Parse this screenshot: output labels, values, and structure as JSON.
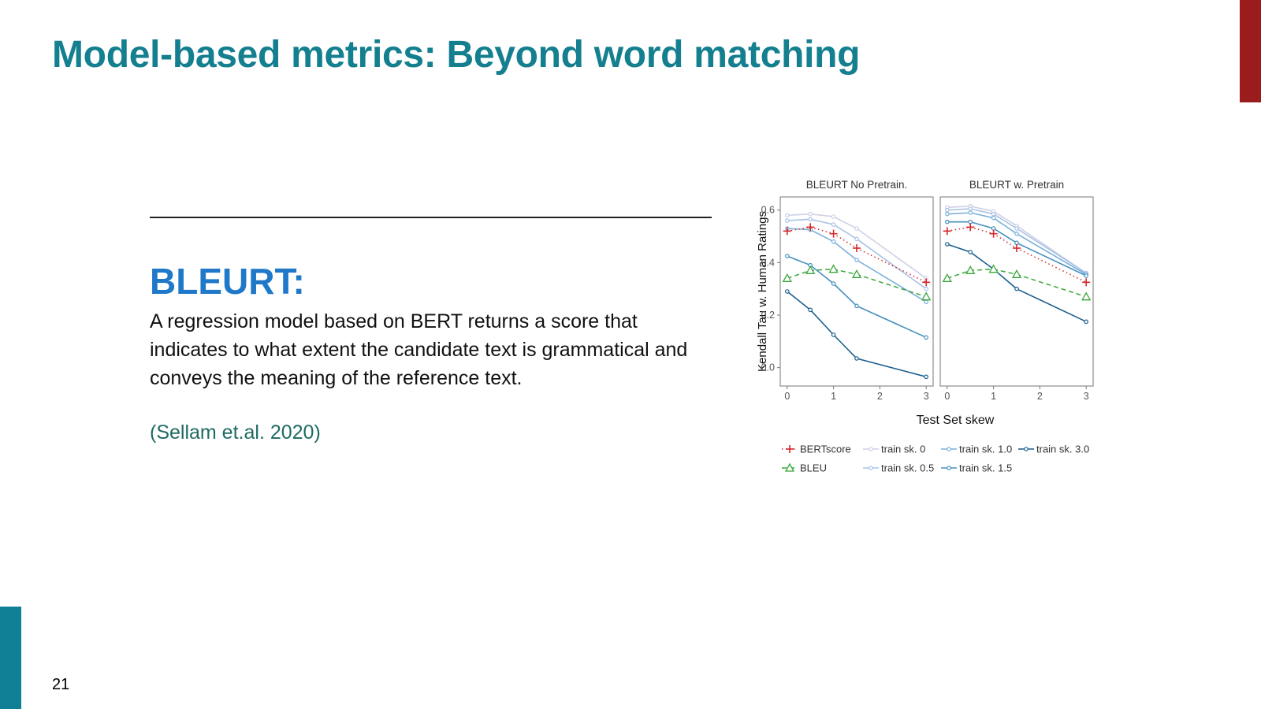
{
  "slide": {
    "title": "Model-based metrics: Beyond word matching",
    "subtitle": "BLEURT:",
    "body": "A regression model based on BERT returns a score that indicates to what extent the candidate text is grammatical and conveys the meaning of the reference text.",
    "citation": "(Sellam et.al. 2020)",
    "page_number": "21",
    "colors": {
      "title": "#137f8f",
      "subtitle": "#1f78c8",
      "citation": "#1e6b63",
      "corner_bar": "#9b1c1c",
      "left_bar": "#0e7f95"
    }
  },
  "chart_data": {
    "type": "line",
    "xlabel": "Test Set skew",
    "ylabel": "Kendall Tau w. Human Ratings",
    "ylim": [
      -0.07,
      0.65
    ],
    "xlim": [
      -0.15,
      3.15
    ],
    "x_ticks": [
      "0",
      "1",
      "2",
      "3"
    ],
    "y_ticks": [
      "0.0",
      "0.2",
      "0.4",
      "0.6"
    ],
    "legend_position": "bottom",
    "panels": [
      {
        "title": "BLEURT No Pretrain.",
        "series": [
          {
            "name": "train sk. 0",
            "x": [
              0,
              0.5,
              1,
              1.5,
              3
            ],
            "y": [
              0.58,
              0.585,
              0.575,
              0.53,
              0.34
            ]
          },
          {
            "name": "train sk. 0.5",
            "x": [
              0,
              0.5,
              1,
              1.5,
              3
            ],
            "y": [
              0.56,
              0.565,
              0.545,
              0.49,
              0.3
            ]
          },
          {
            "name": "train sk. 1.0",
            "x": [
              0,
              0.5,
              1,
              1.5,
              3
            ],
            "y": [
              0.53,
              0.525,
              0.48,
              0.41,
              0.25
            ]
          },
          {
            "name": "train sk. 1.5",
            "x": [
              0,
              0.5,
              1,
              1.5,
              3
            ],
            "y": [
              0.425,
              0.39,
              0.32,
              0.235,
              0.115
            ]
          },
          {
            "name": "train sk. 3.0",
            "x": [
              0,
              0.5,
              1,
              1.5,
              3
            ],
            "y": [
              0.29,
              0.22,
              0.125,
              0.035,
              -0.035
            ]
          },
          {
            "name": "BERTscore",
            "x": [
              0,
              0.5,
              1,
              1.5,
              3
            ],
            "y": [
              0.52,
              0.535,
              0.51,
              0.455,
              0.325
            ]
          },
          {
            "name": "BLEU",
            "x": [
              0,
              0.5,
              1,
              1.5,
              3
            ],
            "y": [
              0.34,
              0.37,
              0.375,
              0.355,
              0.27
            ]
          }
        ]
      },
      {
        "title": "BLEURT w. Pretrain",
        "series": [
          {
            "name": "train sk. 0",
            "x": [
              0,
              0.5,
              1,
              1.5,
              3
            ],
            "y": [
              0.61,
              0.615,
              0.595,
              0.54,
              0.36
            ]
          },
          {
            "name": "train sk. 0.5",
            "x": [
              0,
              0.5,
              1,
              1.5,
              3
            ],
            "y": [
              0.6,
              0.605,
              0.585,
              0.53,
              0.36
            ]
          },
          {
            "name": "train sk. 1.0",
            "x": [
              0,
              0.5,
              1,
              1.5,
              3
            ],
            "y": [
              0.585,
              0.59,
              0.57,
              0.51,
              0.355
            ]
          },
          {
            "name": "train sk. 1.5",
            "x": [
              0,
              0.5,
              1,
              1.5,
              3
            ],
            "y": [
              0.555,
              0.555,
              0.53,
              0.475,
              0.35
            ]
          },
          {
            "name": "train sk. 3.0",
            "x": [
              0,
              0.5,
              1,
              1.5,
              3
            ],
            "y": [
              0.47,
              0.44,
              0.375,
              0.3,
              0.175
            ]
          },
          {
            "name": "BERTscore",
            "x": [
              0,
              0.5,
              1,
              1.5,
              3
            ],
            "y": [
              0.52,
              0.535,
              0.51,
              0.455,
              0.325
            ]
          },
          {
            "name": "BLEU",
            "x": [
              0,
              0.5,
              1,
              1.5,
              3
            ],
            "y": [
              0.34,
              0.37,
              0.375,
              0.355,
              0.27
            ]
          }
        ]
      }
    ],
    "series_styles": {
      "BERTscore": {
        "color": "#d62728",
        "dash": "dotted",
        "marker": "plus"
      },
      "BLEU": {
        "color": "#3aa63a",
        "dash": "dashed",
        "marker": "triangle"
      },
      "train sk. 0": {
        "color": "#cdd0e6",
        "dash": "solid",
        "marker": "circle"
      },
      "train sk. 0.5": {
        "color": "#a9c2e6",
        "dash": "solid",
        "marker": "circle"
      },
      "train sk. 1.0": {
        "color": "#7ab0da",
        "dash": "solid",
        "marker": "circle"
      },
      "train sk. 1.5": {
        "color": "#4590bf",
        "dash": "solid",
        "marker": "circle"
      },
      "train sk. 3.0": {
        "color": "#1b5f8f",
        "dash": "solid",
        "marker": "circle"
      }
    },
    "legend": [
      [
        "BERTscore",
        "train sk. 0",
        "train sk. 1.0",
        "train sk. 3.0"
      ],
      [
        "BLEU",
        "train sk. 0.5",
        "train sk. 1.5"
      ]
    ]
  }
}
